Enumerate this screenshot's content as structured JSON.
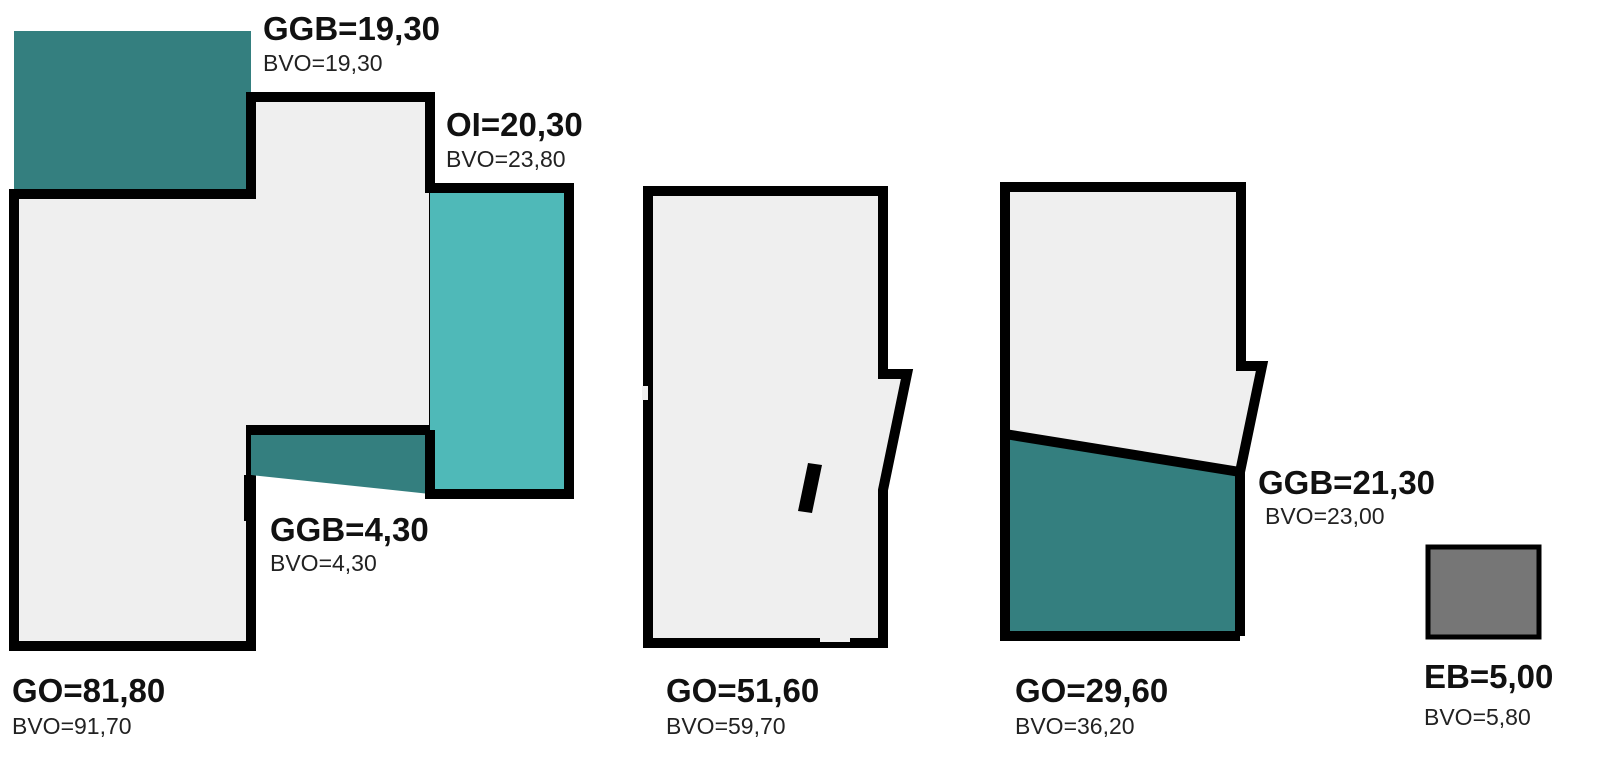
{
  "colors": {
    "outline": "#000000",
    "room_fill": "#efefef",
    "dark_teal": "#347f7f",
    "light_teal": "#4fb9b8",
    "grey": "#767676"
  },
  "plans": [
    {
      "labels": [
        {
          "main": "GGB=19,30",
          "sub": "BVO=19,30"
        },
        {
          "main": "OI=20,30",
          "sub": "BVO=23,80"
        },
        {
          "main": "GGB=4,30",
          "sub": "BVO=4,30"
        },
        {
          "main": "GO=81,80",
          "sub": "BVO=91,70"
        }
      ]
    },
    {
      "labels": [
        {
          "main": "GO=51,60",
          "sub": "BVO=59,70"
        }
      ]
    },
    {
      "labels": [
        {
          "main": "GGB=21,30",
          "sub": "BVO=23,00"
        },
        {
          "main": "GO=29,60",
          "sub": "BVO=36,20"
        }
      ]
    },
    {
      "labels": [
        {
          "main": "EB=5,00",
          "sub": "BVO=5,80"
        }
      ]
    }
  ]
}
